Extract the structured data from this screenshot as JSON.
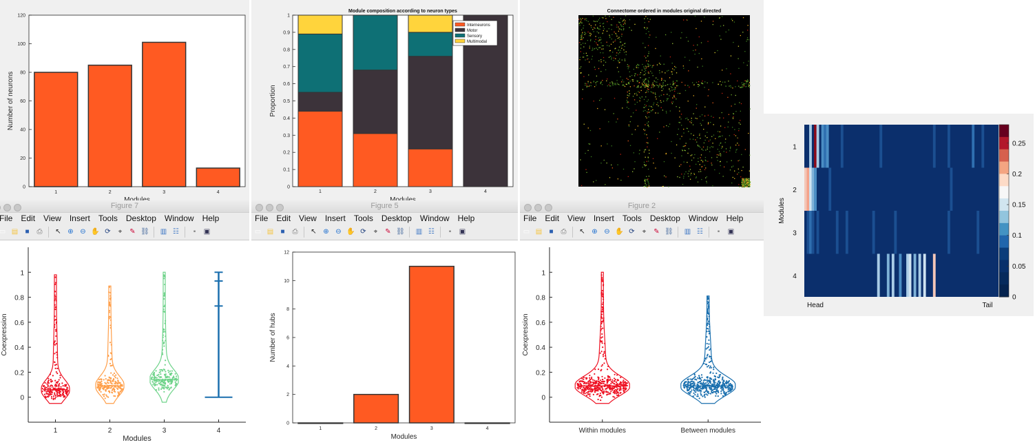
{
  "windows": {
    "w7": {
      "title": "Figure 7"
    },
    "w5": {
      "title": "Figure 5"
    },
    "w2": {
      "title": "Figure 2"
    }
  },
  "menu": [
    "File",
    "Edit",
    "View",
    "Insert",
    "Tools",
    "Desktop",
    "Window",
    "Help"
  ],
  "toolbar_icons": [
    "new-figure-icon",
    "open-file-icon",
    "save-icon",
    "print-icon",
    "pointer-icon",
    "zoom-in-icon",
    "zoom-out-icon",
    "pan-icon",
    "rotate-icon",
    "data-cursor-icon",
    "brush-icon",
    "link-plot-icon",
    "colorbar-icon",
    "legend-icon",
    "hide-plot-tools-icon",
    "show-plot-tools-icon"
  ],
  "colors": {
    "bar": "#ff5a22",
    "interneurons": "#ff5a22",
    "motor": "#3c333a",
    "sensory": "#0e7075",
    "multimodal": "#ffd43c",
    "violin1": "#ee1122",
    "violin2": "#ff9f4a",
    "violin3": "#6fd38a",
    "violin4": "#1a6fae"
  },
  "chart_data": [
    {
      "id": "neurons_per_module",
      "type": "bar",
      "categories": [
        "1",
        "2",
        "3",
        "4"
      ],
      "values": [
        80,
        85,
        101,
        13
      ],
      "ylabel": "Number of neurons",
      "xlabel": "Modules",
      "ylim": [
        0,
        120
      ],
      "yticks": [
        0,
        20,
        40,
        60,
        80,
        100,
        120
      ]
    },
    {
      "id": "module_composition",
      "type": "bar",
      "stacked": true,
      "title": "Module composition according to neuron types",
      "categories": [
        "1",
        "2",
        "3",
        "4"
      ],
      "ylabel": "Proportion",
      "xlabel": "Modules",
      "ylim": [
        0,
        1
      ],
      "yticks": [
        "0",
        "0.1",
        "0.2",
        "0.3",
        "0.4",
        "0.5",
        "0.6",
        "0.7",
        "0.8",
        "0.9",
        "1"
      ],
      "legend_position": "top-right",
      "series": [
        {
          "name": "Interneurons",
          "values": [
            0.44,
            0.31,
            0.22,
            0.0
          ]
        },
        {
          "name": "Motor",
          "values": [
            0.11,
            0.37,
            0.54,
            1.0
          ]
        },
        {
          "name": "Sensory",
          "values": [
            0.34,
            0.32,
            0.14,
            0.0
          ]
        },
        {
          "name": "Multimodal",
          "values": [
            0.11,
            0.0,
            0.1,
            0.0
          ]
        }
      ]
    },
    {
      "id": "connectome",
      "type": "heatmap",
      "title": "Connectome ordered in modules original directed",
      "module_boundaries": [
        0.277,
        0.57,
        0.95
      ],
      "colormap": "hot-on-black"
    },
    {
      "id": "coexpression_by_module",
      "type": "violin",
      "categories": [
        "1",
        "2",
        "3",
        "4"
      ],
      "ylabel": "Coexpression",
      "xlabel": "Modules",
      "ylim": [
        -0.2,
        1.2
      ],
      "yticks": [
        "0",
        "0.2",
        "0.4",
        "0.6",
        "0.8",
        "1"
      ],
      "series": [
        {
          "max": 0.98,
          "min": -0.05,
          "median": 0.06,
          "mean": 0.08
        },
        {
          "max": 0.89,
          "min": -0.05,
          "median": 0.09,
          "mean": 0.1
        },
        {
          "max": 1.0,
          "min": -0.04,
          "median": 0.14,
          "mean": 0.15
        },
        {
          "max": 1.0,
          "min": 0.0,
          "median": 0.0,
          "q3": 0.73,
          "p95": 0.93
        }
      ]
    },
    {
      "id": "hubs_per_module",
      "type": "bar",
      "categories": [
        "1",
        "2",
        "3",
        "4"
      ],
      "values": [
        0,
        2,
        11,
        0
      ],
      "ylabel": "Number of hubs",
      "xlabel": "Modules",
      "ylim": [
        0,
        12
      ],
      "yticks": [
        0,
        2,
        4,
        6,
        8,
        10,
        12
      ]
    },
    {
      "id": "coexpression_within_between",
      "type": "violin",
      "categories": [
        "Within modules",
        "Between modules"
      ],
      "ylabel": "Coexpression",
      "ylim": [
        -0.2,
        1.2
      ],
      "yticks": [
        "0",
        "0.2",
        "0.4",
        "0.6",
        "0.8",
        "1"
      ],
      "series": [
        {
          "max": 1.0,
          "min": -0.05,
          "median": 0.09
        },
        {
          "max": 0.81,
          "min": -0.05,
          "median": 0.09
        }
      ]
    },
    {
      "id": "module_head_tail",
      "type": "heatmap",
      "ylabel": "Modules",
      "rows": [
        "1",
        "2",
        "3",
        "4"
      ],
      "x_start_label": "Head",
      "x_end_label": "Tail",
      "colorbar_ticks": [
        "0",
        "0.05",
        "0.1",
        "0.15",
        "0.2",
        "0.25"
      ],
      "colorbar_range": [
        0,
        0.28
      ]
    }
  ]
}
